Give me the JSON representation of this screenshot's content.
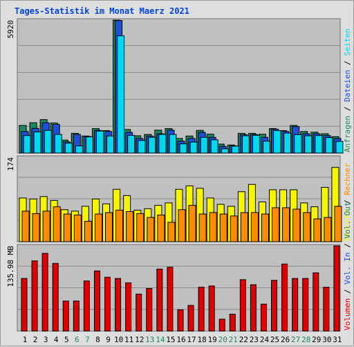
{
  "title": "Tages-Statistik im Monat Maerz 2021",
  "chart_data": [
    {
      "type": "bar",
      "ylim": [
        0,
        5920
      ],
      "y_tick_label": "5920",
      "grid": true,
      "categories": [
        "1",
        "2",
        "3",
        "4",
        "5",
        "6",
        "7",
        "8",
        "9",
        "10",
        "11",
        "12",
        "13",
        "14",
        "15",
        "16",
        "17",
        "18",
        "19",
        "20",
        "21",
        "22",
        "23",
        "24",
        "25",
        "26",
        "27",
        "28",
        "29",
        "30",
        "31"
      ],
      "weekend_days": [
        "6",
        "7",
        "13",
        "14",
        "20",
        "21",
        "27",
        "28"
      ],
      "right_legend": [
        {
          "text": "Anfragen",
          "color": "#1a8a5a"
        },
        {
          "text": "Dateien",
          "color": "#1d4fd8"
        },
        {
          "text": "Seiten",
          "color": "#00d8f0"
        }
      ],
      "series": [
        {
          "name": "Anfragen",
          "color": "#1a8a5a",
          "values": [
            1230,
            1350,
            1490,
            1340,
            580,
            880,
            760,
            1090,
            1000,
            5920,
            1050,
            770,
            830,
            1020,
            1090,
            650,
            760,
            1010,
            840,
            400,
            360,
            880,
            880,
            840,
            1090,
            1000,
            1230,
            960,
            930,
            860,
            730
          ]
        },
        {
          "name": "Dateien",
          "color": "#1d4fd8",
          "values": [
            960,
            1100,
            1350,
            1280,
            500,
            830,
            740,
            1010,
            960,
            5900,
            920,
            650,
            760,
            860,
            1020,
            530,
            650,
            920,
            700,
            300,
            320,
            820,
            830,
            700,
            1060,
            960,
            1180,
            860,
            860,
            780,
            650
          ]
        },
        {
          "name": "Seiten",
          "color": "#00d8f0",
          "values": [
            780,
            940,
            1010,
            830,
            440,
            320,
            720,
            980,
            760,
            5220,
            790,
            560,
            700,
            830,
            830,
            410,
            490,
            700,
            590,
            190,
            310,
            770,
            790,
            530,
            1000,
            890,
            820,
            770,
            780,
            690,
            520
          ]
        }
      ]
    },
    {
      "type": "bar",
      "ylim": [
        0,
        174
      ],
      "y_tick_label": "174",
      "grid": true,
      "categories": [
        "1",
        "2",
        "3",
        "4",
        "5",
        "6",
        "7",
        "8",
        "9",
        "10",
        "11",
        "12",
        "13",
        "14",
        "15",
        "16",
        "17",
        "18",
        "19",
        "20",
        "21",
        "22",
        "23",
        "24",
        "25",
        "26",
        "27",
        "28",
        "29",
        "30",
        "31"
      ],
      "right_legend": [
        {
          "text": "Besuche",
          "color": "#f5f500"
        },
        {
          "text": "Rechner",
          "color": "#ff8c00"
        }
      ],
      "series": [
        {
          "name": "Besuche",
          "color": "#f5f500",
          "values": [
            90,
            88,
            93,
            85,
            66,
            63,
            73,
            88,
            78,
            108,
            95,
            65,
            68,
            75,
            80,
            108,
            115,
            110,
            90,
            77,
            73,
            103,
            118,
            82,
            107,
            107,
            107,
            80,
            72,
            112,
            153
          ]
        },
        {
          "name": "Rechner",
          "color": "#ff8c00",
          "values": [
            63,
            58,
            63,
            72,
            57,
            55,
            42,
            57,
            60,
            65,
            62,
            58,
            50,
            55,
            40,
            66,
            75,
            57,
            60,
            57,
            53,
            60,
            60,
            57,
            70,
            70,
            67,
            60,
            47,
            50,
            73
          ]
        }
      ]
    },
    {
      "type": "bar",
      "ylim": [
        0,
        135.98
      ],
      "y_tick_label": "135.98 MB",
      "grid": true,
      "categories": [
        "1",
        "2",
        "3",
        "4",
        "5",
        "6",
        "7",
        "8",
        "9",
        "10",
        "11",
        "12",
        "13",
        "14",
        "15",
        "16",
        "17",
        "18",
        "19",
        "20",
        "21",
        "22",
        "23",
        "24",
        "25",
        "26",
        "27",
        "28",
        "29",
        "30",
        "31"
      ],
      "right_legend": [
        {
          "text": "Volumen",
          "color": "#e00000"
        },
        {
          "text": "Vol. In",
          "color": "#1d4fd8"
        },
        {
          "text": "Vol. Out",
          "color": "#1a8a5a"
        }
      ],
      "series": [
        {
          "name": "Volumen",
          "color": "#e00000",
          "values": [
            84,
            112,
            124,
            108,
            48,
            48,
            80,
            96,
            86,
            84,
            77,
            59,
            68,
            99,
            102,
            34,
            41,
            70,
            72,
            19,
            27,
            82,
            74,
            43,
            81,
            107,
            84,
            84,
            93,
            70,
            136
          ]
        }
      ]
    }
  ]
}
